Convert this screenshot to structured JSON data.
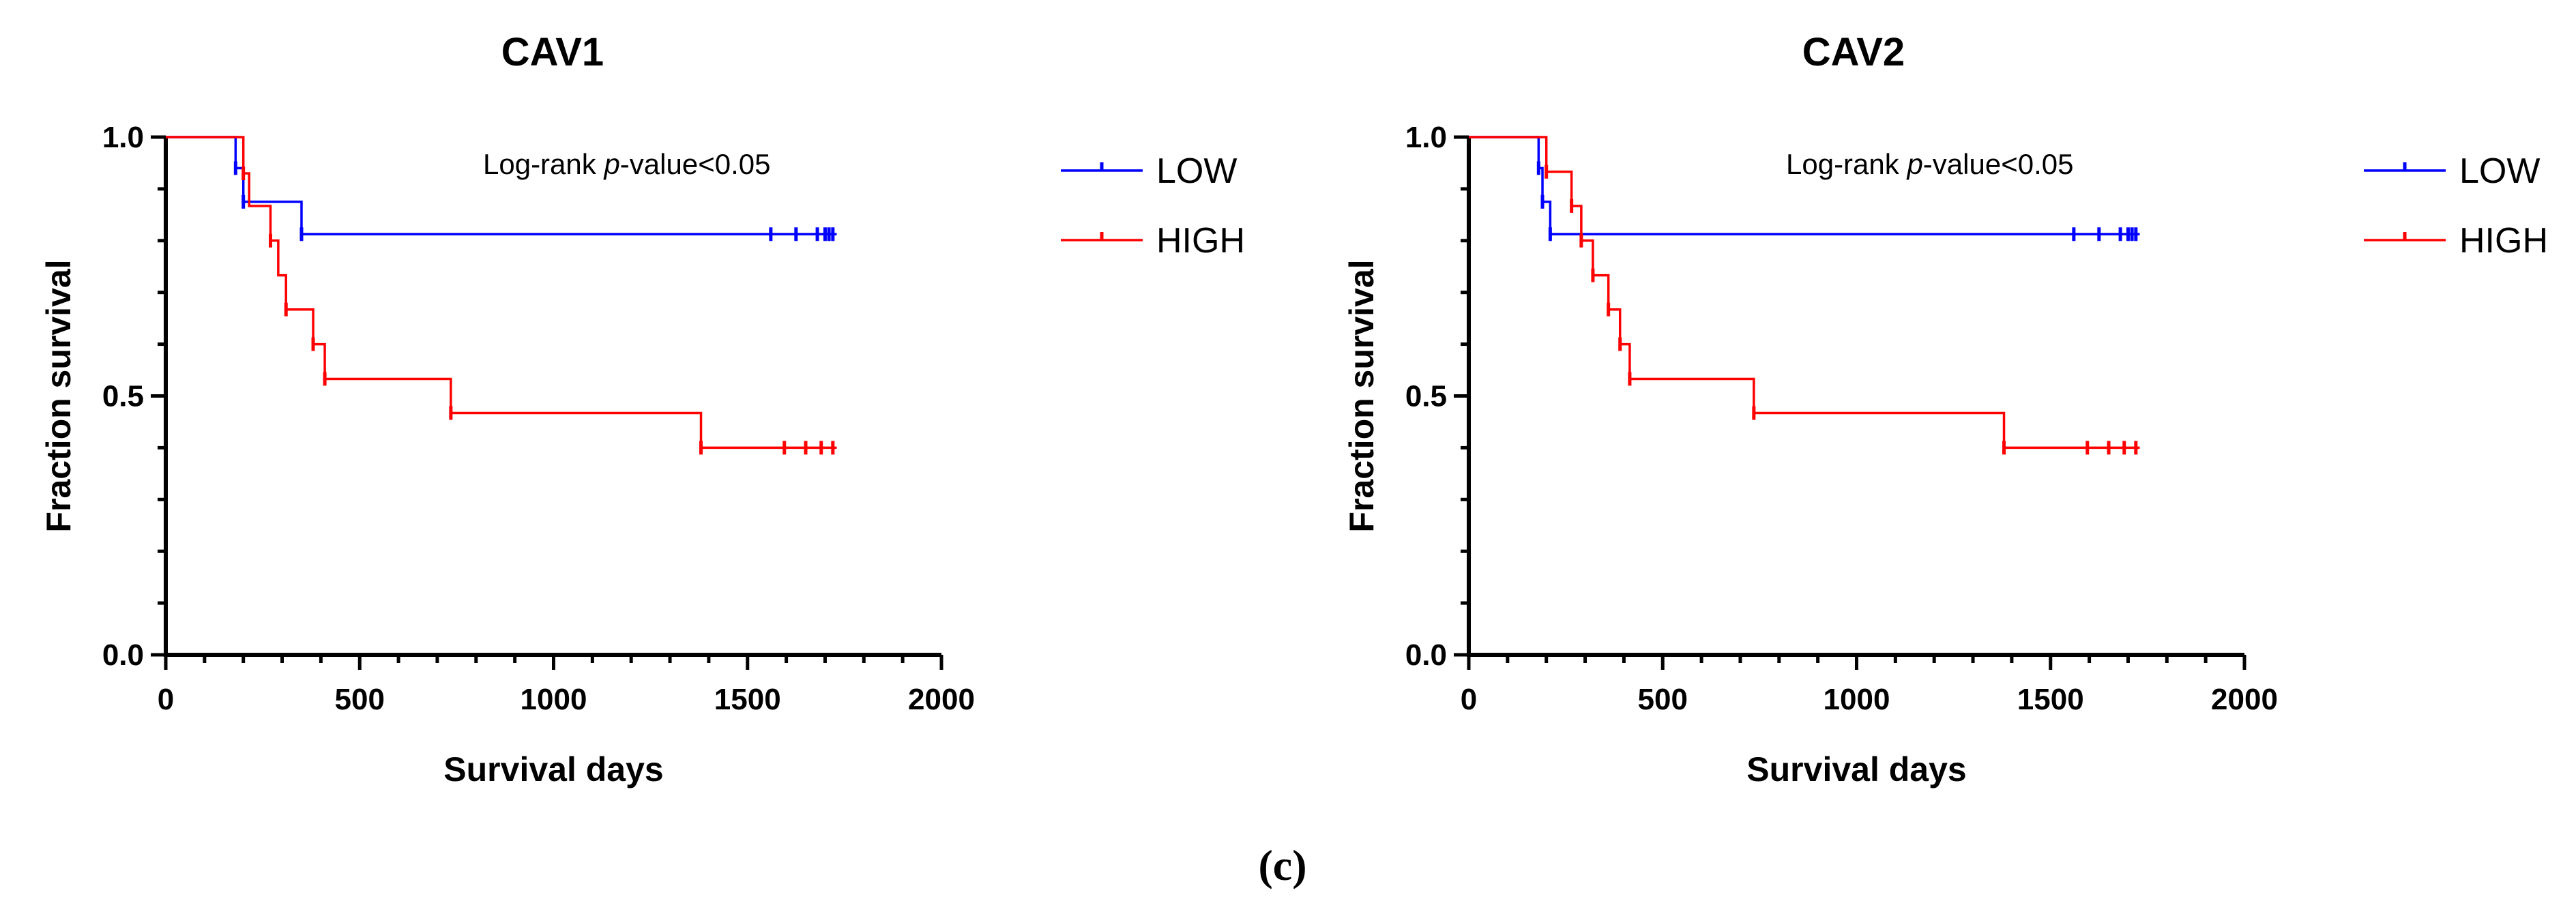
{
  "caption": "(c)",
  "chart_data": [
    {
      "type": "line",
      "subtype": "kaplan-meier",
      "title": "CAV1",
      "xlabel": "Survival days",
      "ylabel": "Fraction survival",
      "xlim": [
        0,
        2000
      ],
      "ylim": [
        0,
        1.0
      ],
      "xticks": [
        0,
        500,
        1000,
        1500,
        2000
      ],
      "yticks": [
        0.0,
        0.5,
        1.0
      ],
      "xtick_labels": [
        "0",
        "500",
        "1000",
        "1500",
        "2000"
      ],
      "ytick_labels": [
        "0.0",
        "0.5",
        "1.0"
      ],
      "legend_position": "right",
      "annotation": {
        "prefix": "Log-rank ",
        "italic": "p",
        "suffix": "-value<0.05"
      },
      "series": [
        {
          "name": "LOW",
          "color": "#0000ff",
          "steps": [
            [
              0,
              1.0
            ],
            [
              180,
              0.94
            ],
            [
              200,
              0.875
            ],
            [
              350,
              0.8125
            ]
          ],
          "end_x": 1730,
          "censored": [
            [
              180,
              0.94
            ],
            [
              200,
              0.875
            ],
            [
              350,
              0.8125
            ],
            [
              1560,
              0.8125
            ],
            [
              1625,
              0.8125
            ],
            [
              1680,
              0.8125
            ],
            [
              1700,
              0.8125
            ],
            [
              1710,
              0.8125
            ],
            [
              1720,
              0.8125
            ]
          ]
        },
        {
          "name": "HIGH",
          "color": "#ff0000",
          "steps": [
            [
              0,
              1.0
            ],
            [
              200,
              0.93
            ],
            [
              215,
              0.867
            ],
            [
              270,
              0.8
            ],
            [
              290,
              0.733
            ],
            [
              310,
              0.667
            ],
            [
              380,
              0.6
            ],
            [
              410,
              0.533
            ],
            [
              735,
              0.467
            ],
            [
              1380,
              0.4
            ]
          ],
          "end_x": 1730,
          "censored": [
            [
              200,
              0.93
            ],
            [
              270,
              0.8
            ],
            [
              310,
              0.667
            ],
            [
              380,
              0.6
            ],
            [
              410,
              0.533
            ],
            [
              735,
              0.467
            ],
            [
              1380,
              0.4
            ],
            [
              1595,
              0.4
            ],
            [
              1650,
              0.4
            ],
            [
              1690,
              0.4
            ],
            [
              1720,
              0.4
            ]
          ]
        }
      ]
    },
    {
      "type": "line",
      "subtype": "kaplan-meier",
      "title": "CAV2",
      "xlabel": "Survival days",
      "ylabel": "Fraction survival",
      "xlim": [
        0,
        2000
      ],
      "ylim": [
        0,
        1.0
      ],
      "xticks": [
        0,
        500,
        1000,
        1500,
        2000
      ],
      "yticks": [
        0.0,
        0.5,
        1.0
      ],
      "xtick_labels": [
        "0",
        "500",
        "1000",
        "1500",
        "2000"
      ],
      "ytick_labels": [
        "0.0",
        "0.5",
        "1.0"
      ],
      "legend_position": "right",
      "annotation": {
        "prefix": "Log-rank ",
        "italic": "p",
        "suffix": "-value<0.05"
      },
      "series": [
        {
          "name": "LOW",
          "color": "#0000ff",
          "steps": [
            [
              0,
              1.0
            ],
            [
              180,
              0.94
            ],
            [
              190,
              0.875
            ],
            [
              210,
              0.8125
            ]
          ],
          "end_x": 1730,
          "censored": [
            [
              180,
              0.94
            ],
            [
              190,
              0.875
            ],
            [
              210,
              0.8125
            ],
            [
              1560,
              0.8125
            ],
            [
              1625,
              0.8125
            ],
            [
              1680,
              0.8125
            ],
            [
              1700,
              0.8125
            ],
            [
              1710,
              0.8125
            ],
            [
              1720,
              0.8125
            ]
          ]
        },
        {
          "name": "HIGH",
          "color": "#ff0000",
          "steps": [
            [
              0,
              1.0
            ],
            [
              200,
              0.933
            ],
            [
              265,
              0.867
            ],
            [
              290,
              0.8
            ],
            [
              320,
              0.733
            ],
            [
              360,
              0.667
            ],
            [
              390,
              0.6
            ],
            [
              415,
              0.533
            ],
            [
              735,
              0.467
            ],
            [
              1380,
              0.4
            ]
          ],
          "end_x": 1730,
          "censored": [
            [
              200,
              0.933
            ],
            [
              265,
              0.867
            ],
            [
              290,
              0.8
            ],
            [
              320,
              0.733
            ],
            [
              360,
              0.667
            ],
            [
              390,
              0.6
            ],
            [
              415,
              0.533
            ],
            [
              735,
              0.467
            ],
            [
              1380,
              0.4
            ],
            [
              1595,
              0.4
            ],
            [
              1650,
              0.4
            ],
            [
              1690,
              0.4
            ],
            [
              1720,
              0.4
            ]
          ]
        }
      ]
    }
  ]
}
